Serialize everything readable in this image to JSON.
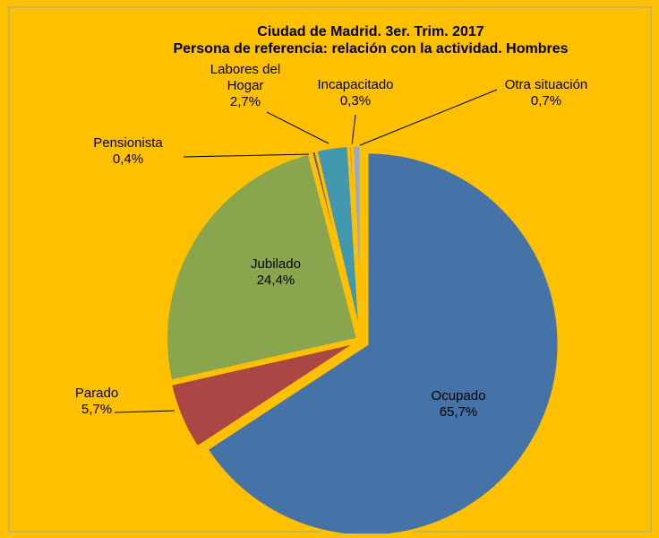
{
  "chart_data": {
    "type": "pie",
    "title": "Ciudad de Madrid. 3er. Trim. 2017",
    "subtitle": "Persona de referencia: relación con la actividad. Hombres",
    "categories": [
      "Ocupado",
      "Parado",
      "Jubilado",
      "Pensionista",
      "Labores del Hogar",
      "Incapacitado",
      "Otra situación"
    ],
    "values": [
      65.7,
      5.7,
      24.4,
      0.4,
      2.7,
      0.3,
      0.7
    ],
    "value_labels": [
      "65,7%",
      "5,7%",
      "24,4%",
      "0,4%",
      "2,7%",
      "0,3%",
      "0,7%"
    ],
    "colors": [
      "#4572a7",
      "#aa4643",
      "#89a54e",
      "#71588f",
      "#4198af",
      "#db843d",
      "#93a9cf"
    ]
  }
}
